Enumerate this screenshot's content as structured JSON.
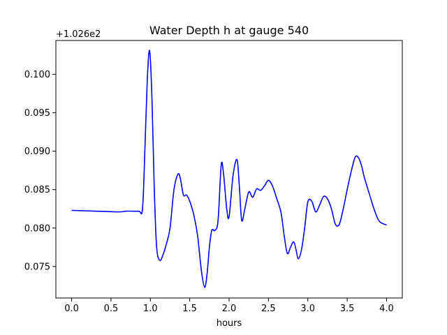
{
  "chart_data": {
    "type": "line",
    "title": "Water Depth h at gauge 540",
    "xlabel": "hours",
    "ylabel": "",
    "offset_label": "+1.026e2",
    "xlim": [
      -0.2,
      4.2
    ],
    "ylim": [
      0.0709,
      0.1044
    ],
    "xticks": [
      0.0,
      0.5,
      1.0,
      1.5,
      2.0,
      2.5,
      3.0,
      3.5,
      4.0
    ],
    "xtick_labels": [
      "0.0",
      "0.5",
      "1.0",
      "1.5",
      "2.0",
      "2.5",
      "3.0",
      "3.5",
      "4.0"
    ],
    "yticks": [
      0.075,
      0.08,
      0.085,
      0.09,
      0.095,
      0.1
    ],
    "ytick_labels": [
      "0.075",
      "0.080",
      "0.085",
      "0.090",
      "0.095",
      "0.100"
    ],
    "grid": false,
    "series": [
      {
        "color": "#0000ff",
        "x": [
          0.0,
          0.3,
          0.6,
          0.7,
          0.85,
          0.9,
          0.93,
          0.96,
          0.99,
          1.02,
          1.05,
          1.08,
          1.12,
          1.16,
          1.2,
          1.25,
          1.3,
          1.35,
          1.38,
          1.42,
          1.46,
          1.5,
          1.55,
          1.6,
          1.65,
          1.69,
          1.72,
          1.75,
          1.78,
          1.82,
          1.86,
          1.9,
          1.93,
          1.97,
          2.0,
          2.05,
          2.1,
          2.13,
          2.16,
          2.2,
          2.25,
          2.3,
          2.35,
          2.4,
          2.45,
          2.5,
          2.55,
          2.6,
          2.66,
          2.7,
          2.74,
          2.78,
          2.82,
          2.85,
          2.88,
          2.92,
          2.96,
          3.0,
          3.05,
          3.1,
          3.15,
          3.2,
          3.25,
          3.3,
          3.35,
          3.4,
          3.45,
          3.5,
          3.55,
          3.6,
          3.64,
          3.68,
          3.72,
          3.78,
          3.84,
          3.9,
          3.95,
          4.0
        ],
        "y": [
          0.0823,
          0.0822,
          0.0821,
          0.0822,
          0.0822,
          0.0825,
          0.09,
          0.099,
          0.1031,
          0.097,
          0.085,
          0.0775,
          0.0758,
          0.0765,
          0.0778,
          0.08,
          0.085,
          0.087,
          0.0865,
          0.0843,
          0.0843,
          0.0835,
          0.0818,
          0.079,
          0.0743,
          0.0723,
          0.074,
          0.0775,
          0.0797,
          0.0797,
          0.081,
          0.0882,
          0.087,
          0.0825,
          0.0815,
          0.0868,
          0.0889,
          0.0855,
          0.081,
          0.0825,
          0.0847,
          0.084,
          0.0851,
          0.0849,
          0.0855,
          0.0862,
          0.0855,
          0.084,
          0.082,
          0.079,
          0.0767,
          0.0775,
          0.0782,
          0.0772,
          0.076,
          0.0772,
          0.08,
          0.0834,
          0.0835,
          0.0821,
          0.083,
          0.0841,
          0.0838,
          0.0825,
          0.0805,
          0.0805,
          0.0825,
          0.085,
          0.0873,
          0.0892,
          0.0892,
          0.0882,
          0.0865,
          0.0845,
          0.0825,
          0.081,
          0.0806,
          0.0804
        ]
      }
    ]
  }
}
